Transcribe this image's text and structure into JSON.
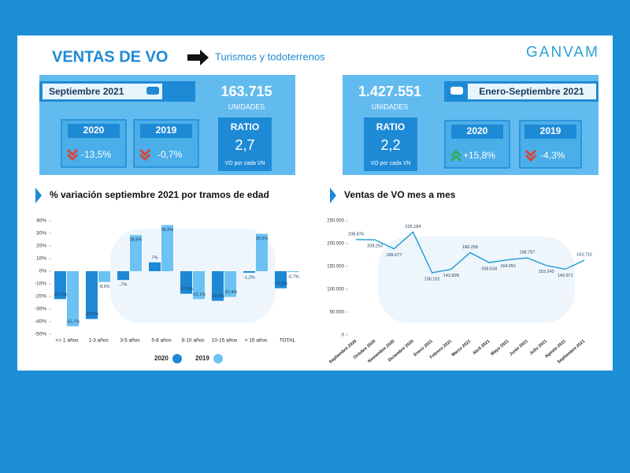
{
  "header": {
    "title": "VENTAS DE VO",
    "subtitle": "Turismos y todoterrenos",
    "logo": "GANVAM"
  },
  "monthly": {
    "period": "Septiembre 2021",
    "units": "163.715",
    "units_label": "UNIDADES",
    "comparisons": [
      {
        "year": "2020",
        "change": "-13,5%"
      },
      {
        "year": "2019",
        "change": "-0,7%"
      }
    ],
    "ratio": {
      "label": "RATIO",
      "value": "2,7",
      "note": "VO por cada VN"
    }
  },
  "cumulative": {
    "period": "Enero-Septiembre 2021",
    "units": "1.427.551",
    "units_label": "UNIDADES",
    "comparisons": [
      {
        "year": "2020",
        "change": "+15,8%"
      },
      {
        "year": "2019",
        "change": "-4,3%"
      }
    ],
    "ratio": {
      "label": "RATIO",
      "value": "2,2",
      "note": "VO por cada VN"
    }
  },
  "chart_data": [
    {
      "type": "bar",
      "title": "% variación septiembre 2021 por tramos de edad",
      "categories": [
        "<= 1 años",
        "1-3 años",
        "3-5 años",
        "5-8 años",
        "8-10 años",
        "10-15 años",
        "> 15 años",
        "TOTAL"
      ],
      "series": [
        {
          "name": "2020",
          "color": "#1e88d4",
          "values": [
            -22.1,
            -37.9,
            -7,
            7,
            -17.9,
            -23.5,
            -1.2,
            -13.5
          ],
          "value_labels": [
            "-22,1%",
            "-37,9%",
            "-7%",
            "7%",
            "-17,9%",
            "-23,5%",
            "-1,2%",
            "-13,5%"
          ]
        },
        {
          "name": "2019",
          "color": "#6cc2f2",
          "values": [
            -43.7,
            -8.6,
            28.6,
            36.6,
            -22.1,
            -20.4,
            29.6,
            -0.7
          ],
          "value_labels": [
            "-43,7%",
            "-8,6%",
            "28,6%",
            "36,6%",
            "-22,1%",
            "-20,4%",
            "29,6%",
            "-0,7%"
          ]
        }
      ],
      "ylim": [
        -50,
        40
      ],
      "yticks": [
        {
          "value": -50,
          "label": "-50%"
        },
        {
          "value": -40,
          "label": "-40%"
        },
        {
          "value": -30,
          "label": "-30%"
        },
        {
          "value": -20,
          "label": "-20%"
        },
        {
          "value": -10,
          "label": "-10%"
        },
        {
          "value": 0,
          "label": "0%"
        },
        {
          "value": 10,
          "label": "10%"
        },
        {
          "value": 20,
          "label": "20%"
        },
        {
          "value": 30,
          "label": "30%"
        },
        {
          "value": 40,
          "label": "40%"
        }
      ],
      "legend": "bottom",
      "grid": false
    },
    {
      "type": "line",
      "title": "Ventas de VO mes a mes",
      "categories": [
        "Septiembre 2020",
        "Octubre 2020",
        "Noviembre 2020",
        "Diciembre 2020",
        "Enero 2021",
        "Febrero 2021",
        "Marzo 2021",
        "Abril 2021",
        "Mayo 2021",
        "Junio 2021",
        "Julio 2021",
        "Agosto 2021",
        "Septiembre 2021"
      ],
      "values": [
        208876,
        208253,
        188677,
        225184,
        136152,
        143828,
        180258,
        158534,
        164651,
        168797,
        152243,
        143971,
        163715
      ],
      "value_labels": [
        "208.876",
        "208.253",
        "188.677",
        "225.184",
        "136.152",
        "143.828",
        "180.258",
        "158.534",
        "164.651",
        "168.797",
        "152.243",
        "143.971",
        "163.715"
      ],
      "color": "#2a9fd6",
      "ylim": [
        0,
        250000
      ],
      "yticks": [
        0,
        {
          "value": 50000,
          "label": "50.000"
        },
        {
          "value": 100000,
          "label": "100.000"
        },
        {
          "value": 150000,
          "label": "150.000"
        },
        {
          "value": 200000,
          "label": "200.000"
        },
        {
          "value": 250000,
          "label": "250.000"
        }
      ],
      "grid": false
    }
  ]
}
